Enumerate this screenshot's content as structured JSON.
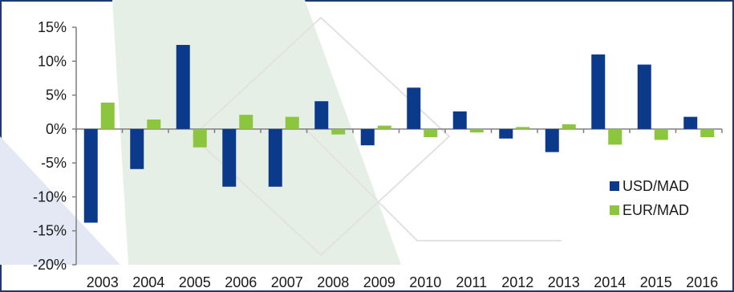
{
  "colors": {
    "usd": "#0b3a8a",
    "eur": "#8cc63f",
    "axis": "#7f7f7f",
    "decor_green": "#e6efe6",
    "decor_blue": "#e3e8f4"
  },
  "chart_data": {
    "type": "bar",
    "categories": [
      "2003",
      "2004",
      "2005",
      "2006",
      "2007",
      "2008",
      "2009",
      "2010",
      "2011",
      "2012",
      "2013",
      "2014",
      "2015",
      "2016"
    ],
    "series": [
      {
        "name": "USD/MAD",
        "color": "#0b3a8a",
        "values": [
          -13.8,
          -5.9,
          12.4,
          -8.5,
          -8.5,
          4.1,
          -2.4,
          6.1,
          2.6,
          -1.4,
          -3.4,
          11.0,
          9.5,
          1.8
        ]
      },
      {
        "name": "EUR/MAD",
        "color": "#8cc63f",
        "values": [
          3.9,
          1.4,
          -2.7,
          2.1,
          1.8,
          -0.8,
          0.5,
          -1.2,
          -0.5,
          0.3,
          0.7,
          -2.3,
          -1.6,
          -1.2
        ]
      }
    ],
    "ylim": [
      -20,
      15
    ],
    "yticks": [
      15,
      10,
      5,
      0,
      -5,
      -10,
      -15,
      -20
    ],
    "ytick_labels": [
      "15%",
      "10%",
      "5%",
      "0%",
      "-5%",
      "-10%",
      "-15%",
      "-20%"
    ],
    "legend_position": "bottom-right",
    "grid": false
  }
}
